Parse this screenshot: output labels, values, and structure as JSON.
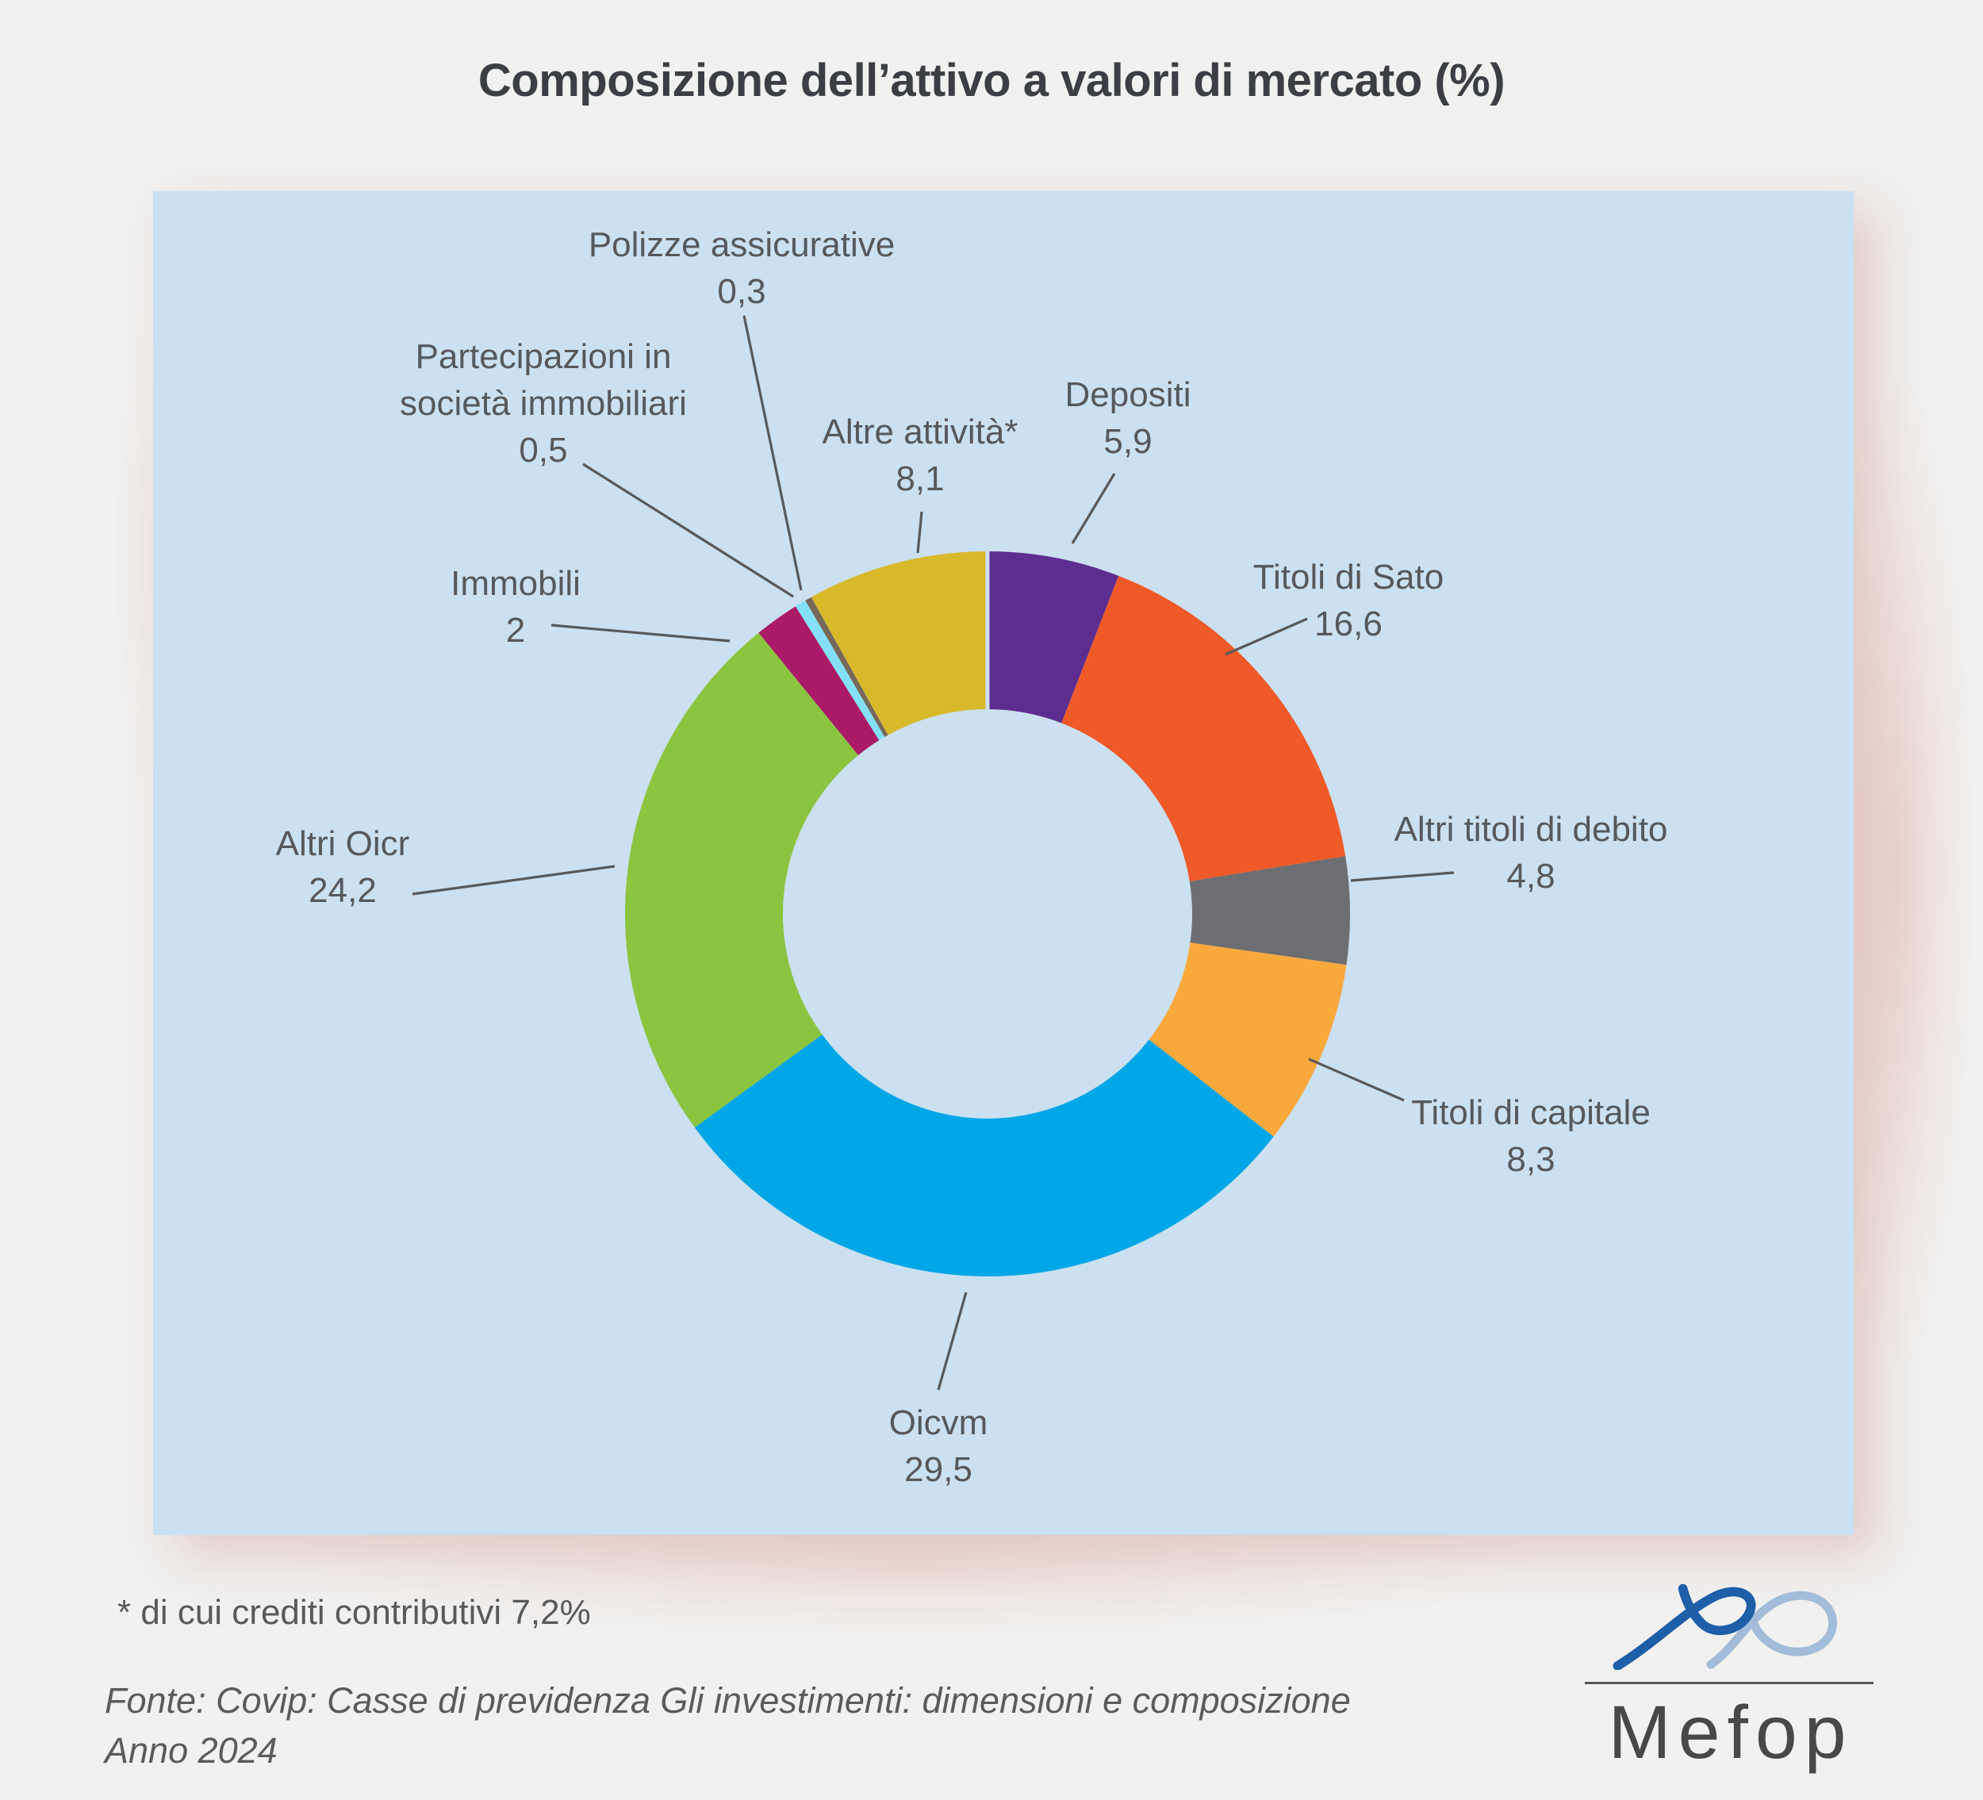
{
  "title": "Composizione dell’attivo a valori di mercato (%)",
  "chart_data": {
    "type": "pie",
    "subtype": "donut",
    "title": "Composizione dell’attivo a valori di mercato (%)",
    "unit": "%",
    "direction": "clockwise",
    "start": "12-o-clock",
    "legend_position": "callout-labels",
    "grid": false,
    "panel_background": "#cbe0f1",
    "categories": [
      "Depositi",
      "Titoli di Sato",
      "Altri titoli di debito",
      "Titoli di capitale",
      "Oicvm",
      "Altri Oicr",
      "Immobili",
      "Partecipazioni in società immobiliari",
      "Polizze assicurative",
      "Altre attività*"
    ],
    "label_lines": [
      "Depositi",
      "Titoli di Sato",
      "Altri titoli di debito",
      "Titoli di capitale",
      "Oicvm",
      "Altri Oicr",
      "Immobili",
      "Partecipazioni in\nsocietà immobiliari",
      "Polizze assicurative",
      "Altre attività*"
    ],
    "values": [
      5.9,
      16.6,
      4.8,
      8.3,
      29.5,
      24.2,
      2,
      0.5,
      0.3,
      8.1
    ],
    "value_labels": [
      "5,9",
      "16,6",
      "4,8",
      "8,3",
      "29,5",
      "24,2",
      "2",
      "0,5",
      "0,3",
      "8,1"
    ],
    "colors": [
      "#5e2d90",
      "#f05a28",
      "#6d6e71",
      "#f9a83c",
      "#00a7e7",
      "#8bc540",
      "#ab1a66",
      "#84e1f5",
      "#76695a",
      "#d8b92a"
    ]
  },
  "footnote": "*  di cui crediti contributivi 7,2%",
  "source": {
    "line1": "Fonte: Covip: Casse di previdenza Gli investimenti: dimensioni e composizione",
    "line2": "Anno 2024"
  },
  "logo": {
    "wordmark": "Mefop",
    "swoosh_dark": "#1d5fa8",
    "swoosh_light": "#a2bcd9"
  },
  "colors": {
    "title_text": "#3b3e43",
    "label_text": "#57585b",
    "leader_line": "#58595b",
    "page_background": "#f1f1f0"
  }
}
